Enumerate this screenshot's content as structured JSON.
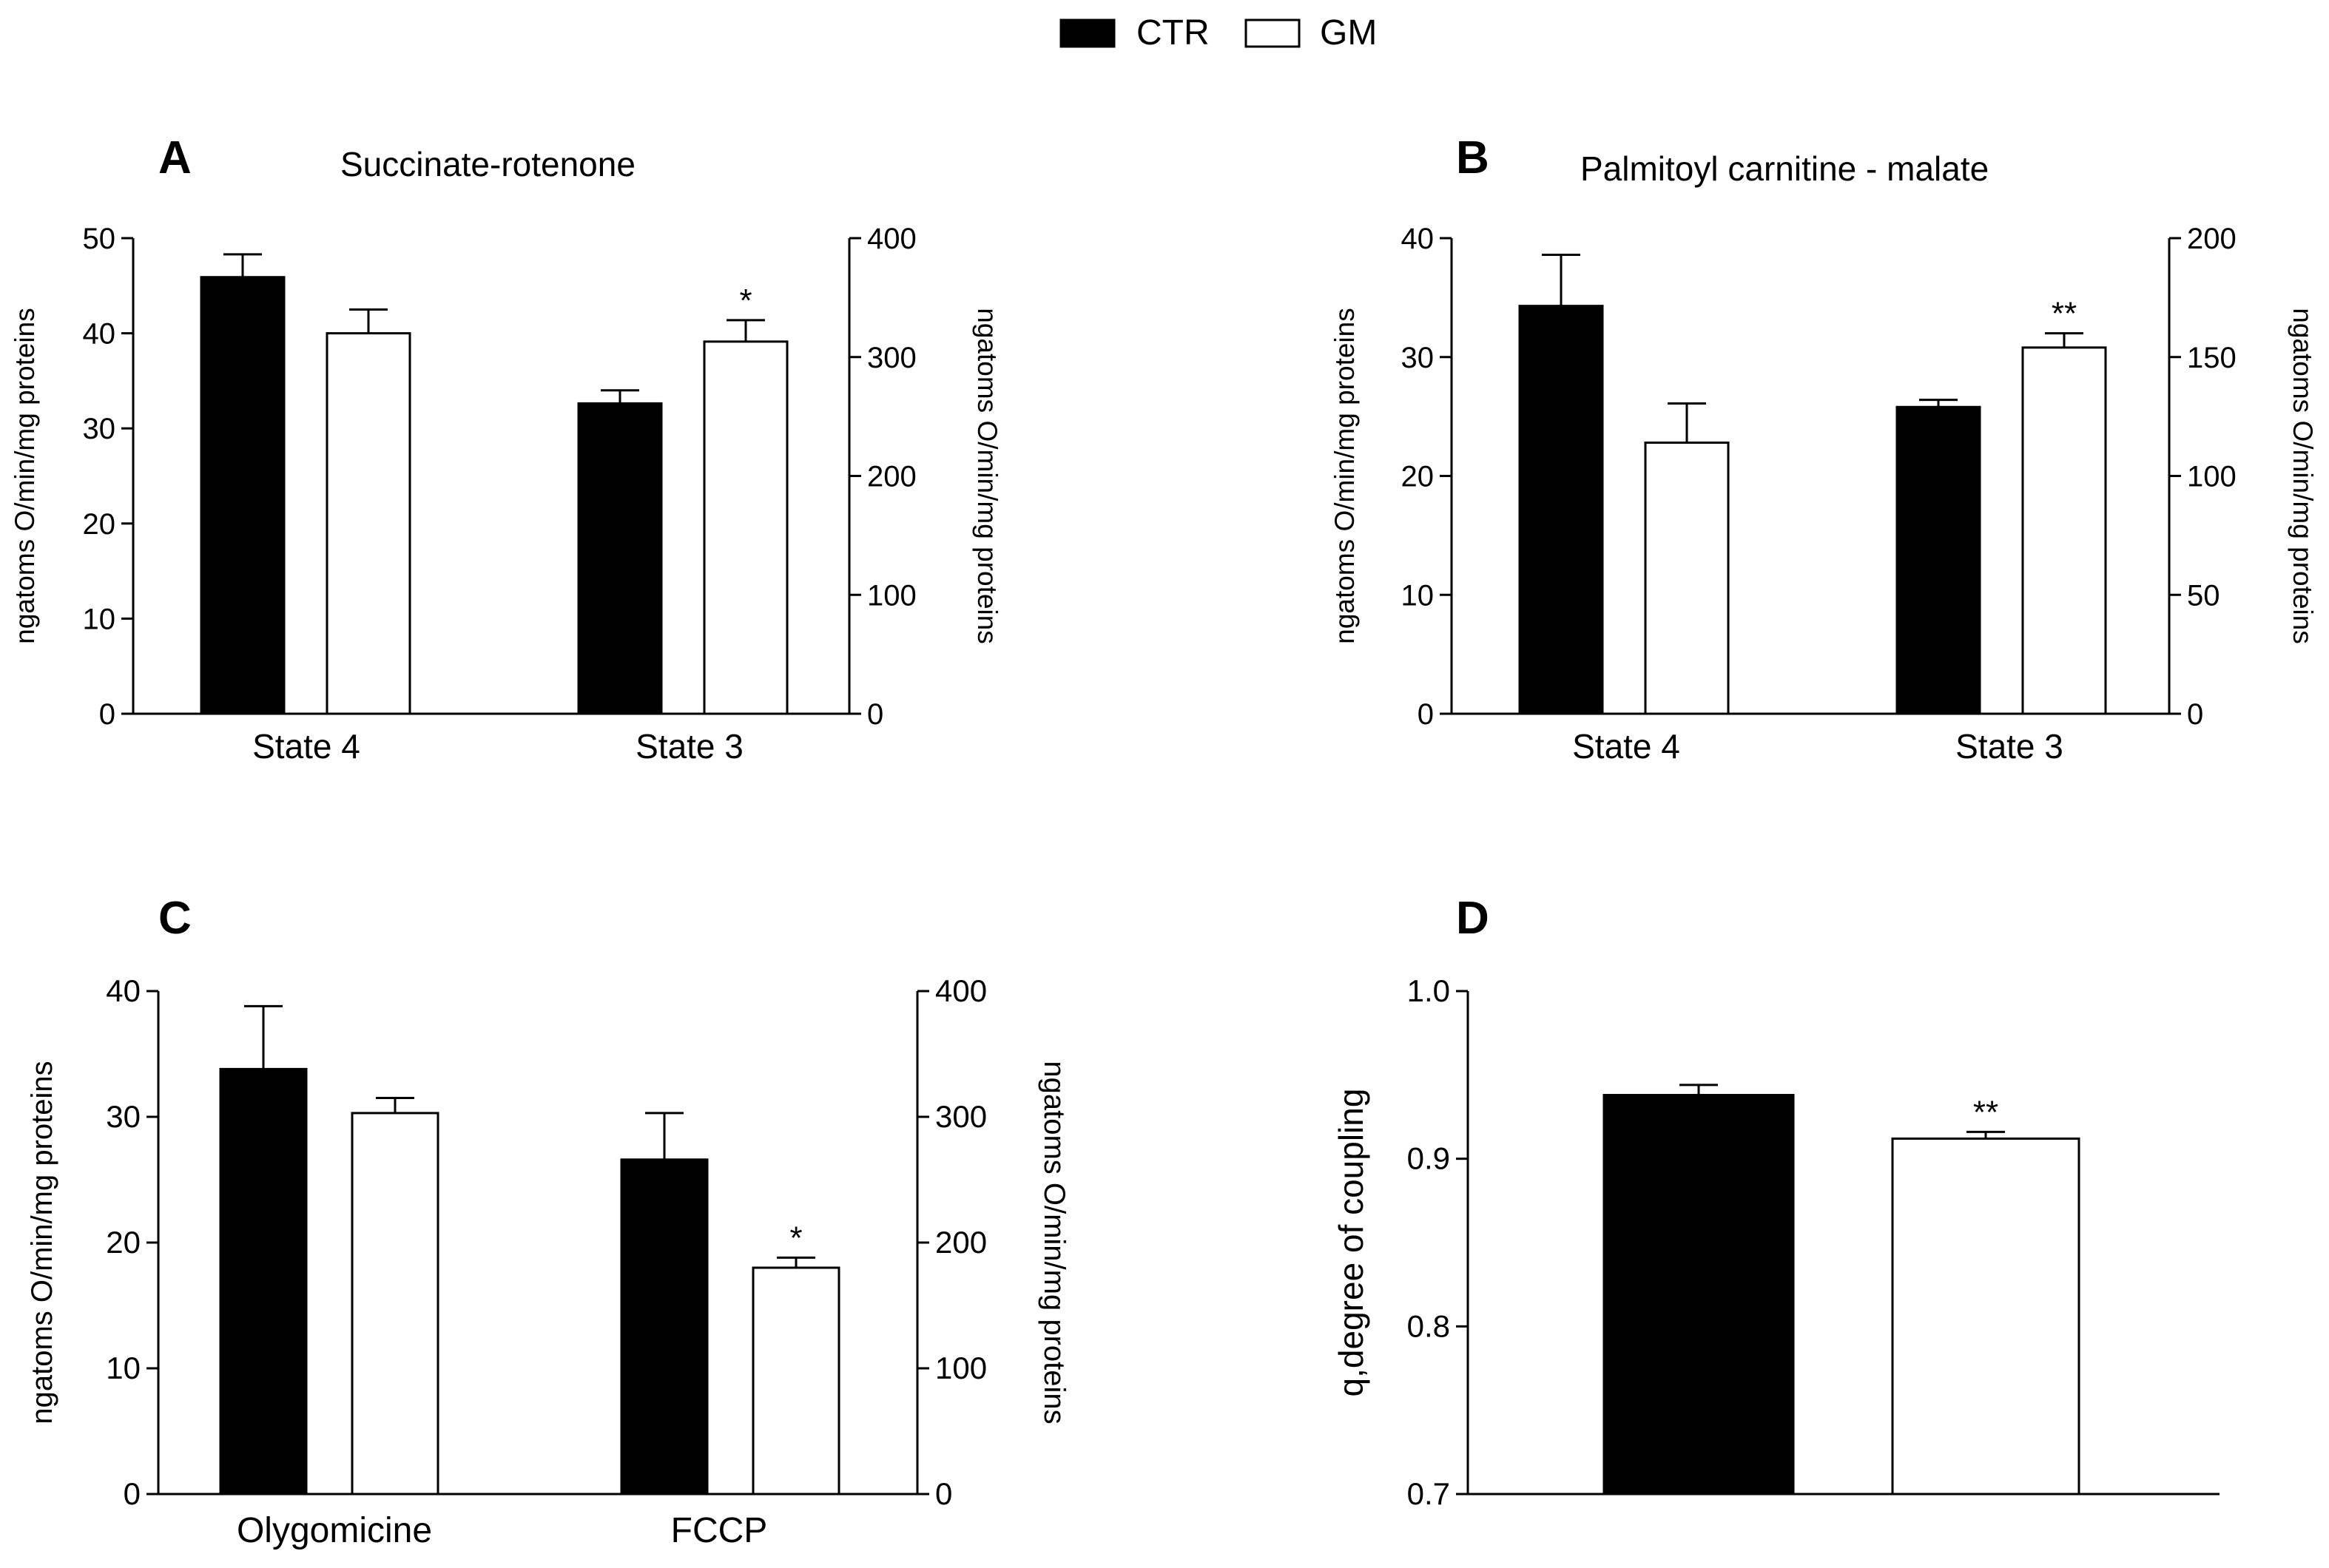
{
  "legend": {
    "entries": [
      {
        "label": "CTR",
        "color": "#000000"
      },
      {
        "label": "GM",
        "color": "#ffffff"
      }
    ]
  },
  "chart_data": [
    {
      "panel_label": "A",
      "type": "bar",
      "title": "Succinate-rotenone",
      "categories": [
        "State 4",
        "State 3"
      ],
      "ylabel": "ngatoms O/min/mg proteins",
      "ylim": [
        0,
        50
      ],
      "yticks": [
        0,
        10,
        20,
        30,
        40,
        50
      ],
      "ylabel_right": "ngatoms O/min/mg proteins",
      "ylim_right": [
        0,
        400
      ],
      "yticks_right": [
        0,
        100,
        200,
        300,
        400
      ],
      "series": [
        {
          "name": "CTR",
          "values": [
            45.9,
            261
          ],
          "errors": [
            2.4,
            11
          ],
          "axis": [
            "left",
            "right"
          ]
        },
        {
          "name": "GM",
          "values": [
            40.0,
            313
          ],
          "errors": [
            2.5,
            18
          ],
          "axis": [
            "left",
            "right"
          ]
        }
      ],
      "annotations": [
        {
          "series": "GM",
          "category": "State 3",
          "text": "*"
        }
      ]
    },
    {
      "panel_label": "B",
      "type": "bar",
      "title": "Palmitoyl carnitine - malate",
      "categories": [
        "State 4",
        "State 3"
      ],
      "ylabel": "ngatoms O/min/mg proteins",
      "ylim": [
        0,
        40
      ],
      "yticks": [
        0,
        10,
        20,
        30,
        40
      ],
      "ylabel_right": "ngatoms O/min/mg proteins",
      "ylim_right": [
        0,
        200
      ],
      "yticks_right": [
        0,
        50,
        100,
        150,
        200
      ],
      "series": [
        {
          "name": "CTR",
          "values": [
            34.3,
            129
          ],
          "errors": [
            4.3,
            3
          ],
          "axis": [
            "left",
            "right"
          ]
        },
        {
          "name": "GM",
          "values": [
            22.8,
            154
          ],
          "errors": [
            3.3,
            6
          ],
          "axis": [
            "left",
            "right"
          ]
        }
      ],
      "annotations": [
        {
          "series": "GM",
          "category": "State 3",
          "text": "**"
        }
      ]
    },
    {
      "panel_label": "C",
      "type": "bar",
      "title": "",
      "categories": [
        "Olygomicine",
        "FCCP"
      ],
      "ylabel": "ngatoms O/min/mg proteins",
      "ylim": [
        0,
        40
      ],
      "yticks": [
        0,
        10,
        20,
        30,
        40
      ],
      "ylabel_right": "ngatoms O/min/mg proteins",
      "ylim_right": [
        0,
        400
      ],
      "yticks_right": [
        0,
        100,
        200,
        300,
        400
      ],
      "series": [
        {
          "name": "CTR",
          "values": [
            33.8,
            266
          ],
          "errors": [
            5.0,
            37
          ],
          "axis": [
            "left",
            "right"
          ]
        },
        {
          "name": "GM",
          "values": [
            30.3,
            180
          ],
          "errors": [
            1.2,
            8
          ],
          "axis": [
            "left",
            "right"
          ]
        }
      ],
      "annotations": [
        {
          "series": "GM",
          "category": "FCCP",
          "text": "*"
        }
      ]
    },
    {
      "panel_label": "D",
      "type": "bar",
      "title": "",
      "categories": [
        ""
      ],
      "ylabel": "q,degree of coupling",
      "ylim": [
        0.7,
        1.0
      ],
      "yticks": [
        "0.7",
        "0.8",
        "0.9",
        "1.0"
      ],
      "series": [
        {
          "name": "CTR",
          "values": [
            0.938
          ],
          "errors": [
            0.006
          ],
          "axis": [
            "left"
          ]
        },
        {
          "name": "GM",
          "values": [
            0.912
          ],
          "errors": [
            0.004
          ],
          "axis": [
            "left"
          ]
        }
      ],
      "annotations": [
        {
          "series": "GM",
          "category": "",
          "text": "**"
        }
      ]
    }
  ]
}
